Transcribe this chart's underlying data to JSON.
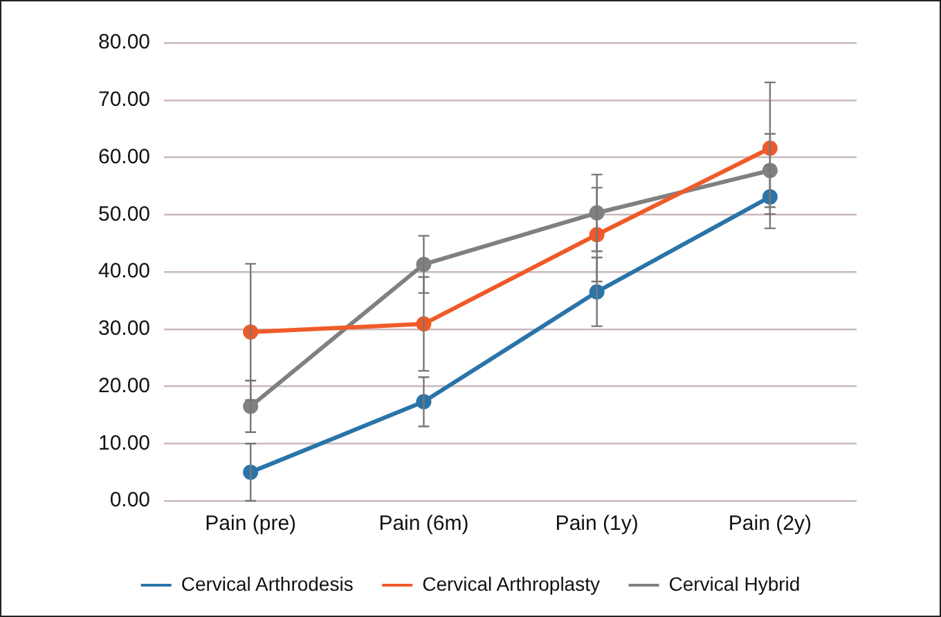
{
  "chart_data": {
    "type": "line",
    "categories": [
      "Pain (pre)",
      "Pain (6m)",
      "Pain (1y)",
      "Pain (2y)"
    ],
    "series": [
      {
        "name": "Cervical Arthrodesis",
        "color": "#2a74a8",
        "values": [
          5.0,
          17.3,
          36.5,
          53.1
        ],
        "errors": [
          5.0,
          4.3,
          6.0,
          5.5
        ]
      },
      {
        "name": "Cervical Arthroplasty",
        "color": "#f05a28",
        "values": [
          29.5,
          30.9,
          46.5,
          61.6
        ],
        "errors": [
          11.9,
          8.2,
          8.2,
          11.5
        ]
      },
      {
        "name": "Cervical Hybrid",
        "color": "#808080",
        "values": [
          16.5,
          41.3,
          50.3,
          57.7
        ],
        "errors": [
          4.5,
          5.0,
          6.7,
          6.4
        ]
      }
    ],
    "ylim": [
      0,
      80
    ],
    "yticks": [
      {
        "value": 0,
        "label": "0.00"
      },
      {
        "value": 10,
        "label": "10.00"
      },
      {
        "value": 20,
        "label": "20.00"
      },
      {
        "value": 30,
        "label": "30.00"
      },
      {
        "value": 40,
        "label": "40.00"
      },
      {
        "value": 50,
        "label": "50.00"
      },
      {
        "value": 60,
        "label": "60.00"
      },
      {
        "value": 70,
        "label": "70.00"
      },
      {
        "value": 80,
        "label": "80.00"
      }
    ],
    "grid": "y",
    "legend": "bottom",
    "marker": "circle",
    "line_style": "solid"
  }
}
